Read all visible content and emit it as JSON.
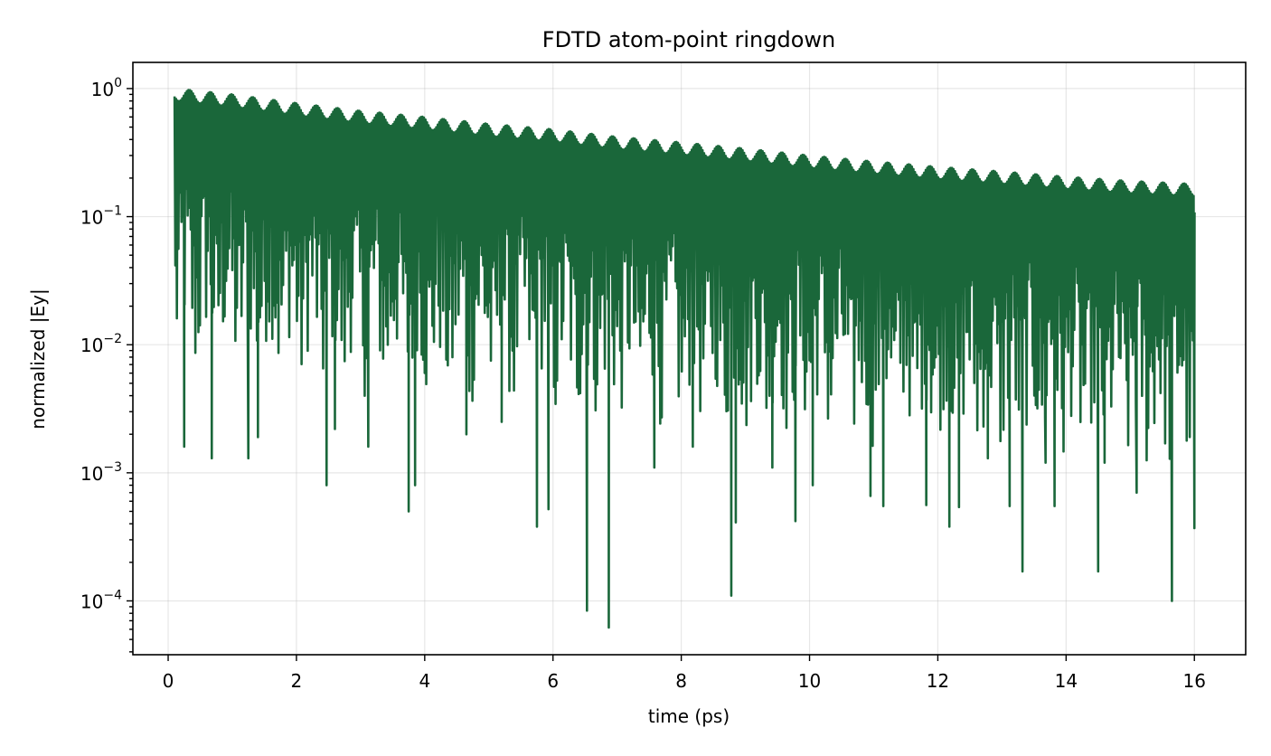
{
  "chart_data": {
    "type": "line",
    "title": "FDTD atom-point ringdown",
    "xlabel": "time (ps)",
    "ylabel": "normalized |Ey|",
    "xlim": [
      -0.55,
      16.8
    ],
    "ylim": [
      3.8e-05,
      1.6
    ],
    "yscale": "log",
    "grid": true,
    "color": "#1a673a",
    "x_ticks": [
      {
        "value": 0,
        "label": "0"
      },
      {
        "value": 2,
        "label": "2"
      },
      {
        "value": 4,
        "label": "4"
      },
      {
        "value": 6,
        "label": "6"
      },
      {
        "value": 8,
        "label": "8"
      },
      {
        "value": 10,
        "label": "10"
      },
      {
        "value": 12,
        "label": "12"
      },
      {
        "value": 14,
        "label": "14"
      },
      {
        "value": 16,
        "label": "16"
      }
    ],
    "y_ticks": [
      {
        "value": 1,
        "base": "10",
        "exp": "0"
      },
      {
        "value": 0.1,
        "base": "10",
        "exp": "−1"
      },
      {
        "value": 0.01,
        "base": "10",
        "exp": "−2"
      },
      {
        "value": 0.001,
        "base": "10",
        "exp": "−3"
      },
      {
        "value": 0.0001,
        "base": "10",
        "exp": "−4"
      }
    ],
    "series": [
      {
        "t_start": 0.1,
        "t_end": 16.0,
        "envelope": [
          [
            0.12,
            1.0
          ],
          [
            1.0,
            0.9
          ],
          [
            2.0,
            0.77
          ],
          [
            3.0,
            0.67
          ],
          [
            4.0,
            0.6
          ],
          [
            5.0,
            0.53
          ],
          [
            6.0,
            0.48
          ],
          [
            7.0,
            0.42
          ],
          [
            8.0,
            0.38
          ],
          [
            9.0,
            0.34
          ],
          [
            10.0,
            0.3
          ],
          [
            11.0,
            0.27
          ],
          [
            12.0,
            0.245
          ],
          [
            13.0,
            0.225
          ],
          [
            14.0,
            0.205
          ],
          [
            15.0,
            0.19
          ],
          [
            16.0,
            0.18
          ]
        ],
        "deep_minima": [
          [
            0.25,
            0.0016
          ],
          [
            0.68,
            0.0013
          ],
          [
            1.25,
            0.0013
          ],
          [
            1.4,
            0.0019
          ],
          [
            2.47,
            0.0008
          ],
          [
            2.6,
            0.0022
          ],
          [
            3.12,
            0.0016
          ],
          [
            3.75,
            0.0005
          ],
          [
            3.85,
            0.0008
          ],
          [
            4.65,
            0.002
          ],
          [
            5.2,
            0.0025
          ],
          [
            5.75,
            0.00038
          ],
          [
            5.93,
            0.00052
          ],
          [
            6.53,
            8.4e-05
          ],
          [
            6.87,
            6.2e-05
          ],
          [
            7.58,
            0.0011
          ],
          [
            8.18,
            0.0016
          ],
          [
            8.78,
            0.00011
          ],
          [
            8.85,
            0.00041
          ],
          [
            9.42,
            0.0011
          ],
          [
            9.78,
            0.00042
          ],
          [
            10.05,
            0.0008
          ],
          [
            10.95,
            0.00066
          ],
          [
            11.15,
            0.00055
          ],
          [
            11.82,
            0.00056
          ],
          [
            12.18,
            0.00038
          ],
          [
            12.33,
            0.00054
          ],
          [
            12.78,
            0.0013
          ],
          [
            13.12,
            0.00055
          ],
          [
            13.32,
            0.00017
          ],
          [
            13.68,
            0.0012
          ],
          [
            13.82,
            0.00055
          ],
          [
            14.5,
            0.00017
          ],
          [
            14.6,
            0.0012
          ],
          [
            15.1,
            0.0007
          ],
          [
            15.65,
            0.0001
          ],
          [
            16.0,
            0.00037
          ]
        ]
      }
    ]
  }
}
